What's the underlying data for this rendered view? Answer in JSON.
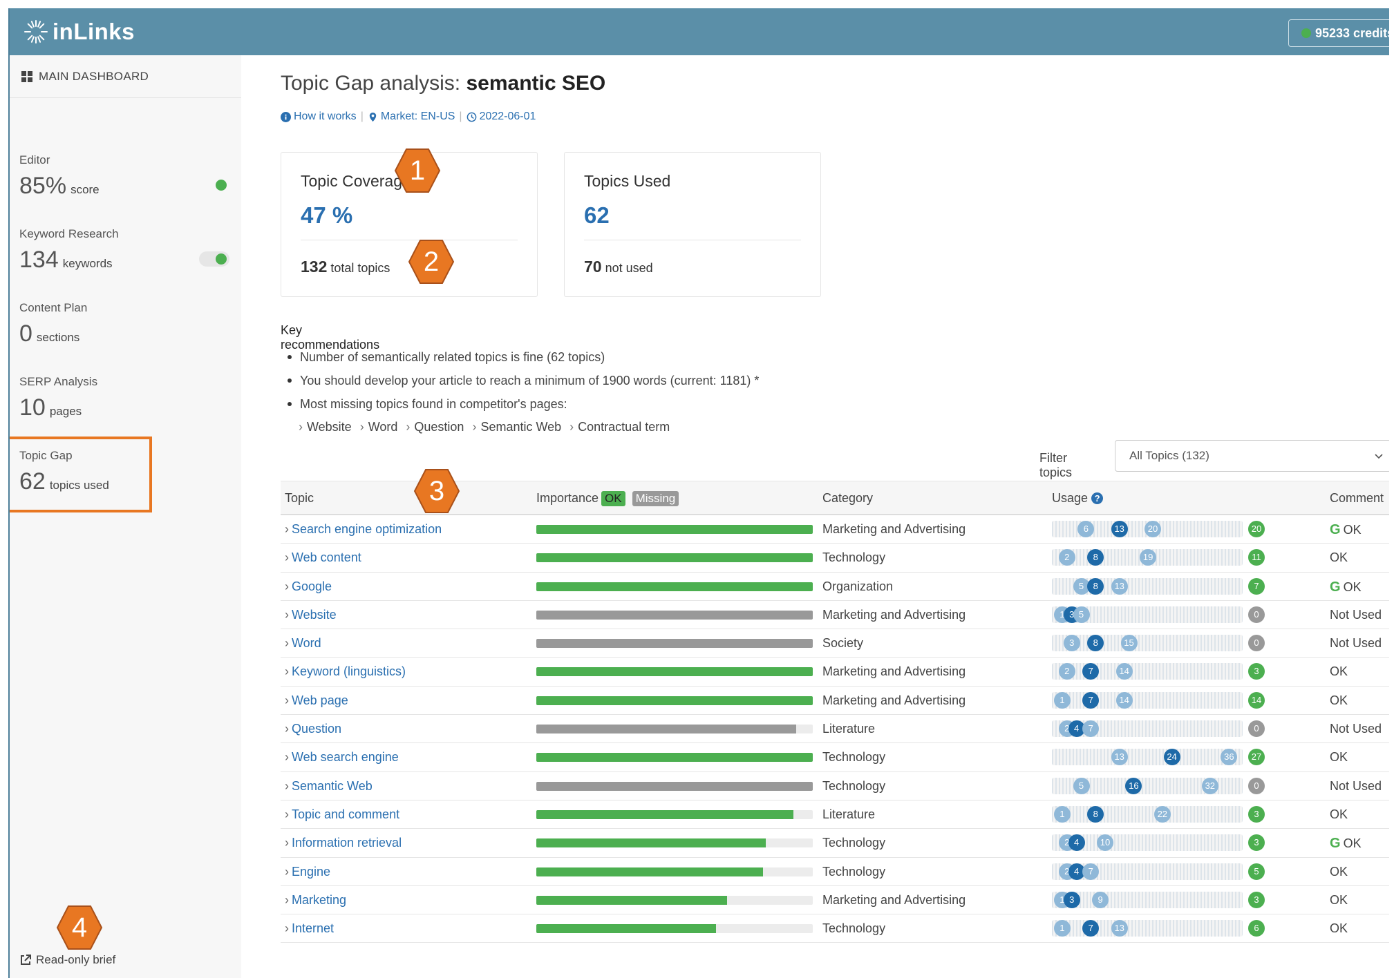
{
  "header": {
    "logo_text": "inLinks",
    "credits_text": "95233 credits"
  },
  "sidebar": {
    "main_dashboard": "MAIN DASHBOARD",
    "items": [
      {
        "label": "Editor",
        "value": "85%",
        "unit": "score",
        "indicator": "dot"
      },
      {
        "label": "Keyword Research",
        "value": "134",
        "unit": "keywords",
        "indicator": "toggle"
      },
      {
        "label": "Content Plan",
        "value": "0",
        "unit": "sections"
      },
      {
        "label": "SERP Analysis",
        "value": "10",
        "unit": "pages"
      },
      {
        "label": "Topic Gap",
        "value": "62",
        "unit": "topics used"
      }
    ],
    "readonly_label": "Read-only brief"
  },
  "page": {
    "title_prefix": "Topic Gap analysis:",
    "title_keyword": "semantic SEO",
    "meta": {
      "how_it_works": "How it works",
      "market": "Market: EN-US",
      "date": "2022-06-01"
    }
  },
  "cards": {
    "coverage": {
      "title": "Topic Coverage",
      "value": "47 %",
      "foot_number": "132",
      "foot_text": "total topics"
    },
    "used": {
      "title": "Topics Used",
      "value": "62",
      "foot_number": "70",
      "foot_text": "not used"
    }
  },
  "recommendations": {
    "title": "Key recommendations",
    "items": [
      "Number of semantically related topics is fine (62 topics)",
      "You should develop your article to reach a minimum of 1900 words (current: 1181) *",
      "Most missing topics found in competitor's pages:"
    ],
    "missing_topics": [
      "Website",
      "Word",
      "Question",
      "Semantic Web",
      "Contractual term"
    ]
  },
  "filter": {
    "label": "Filter topics",
    "selected": "All Topics (132)"
  },
  "table": {
    "headers": {
      "topic": "Topic",
      "importance": "Importance",
      "ok_tag": "OK",
      "missing_tag": "Missing",
      "category": "Category",
      "usage": "Usage",
      "comment": "Comment"
    },
    "rows": [
      {
        "topic": "Search engine optimization",
        "importance": 1.0,
        "status": "ok",
        "category": "Marketing and Advertising",
        "u1": "6",
        "u2": "13",
        "u3": "20",
        "count": "20",
        "comment": "OK",
        "google": true
      },
      {
        "topic": "Web content",
        "importance": 1.0,
        "status": "ok",
        "category": "Technology",
        "u1": "2",
        "u2": "8",
        "u3": "19",
        "count": "11",
        "comment": "OK",
        "google": false
      },
      {
        "topic": "Google",
        "importance": 1.0,
        "status": "ok",
        "category": "Organization",
        "u1": "5",
        "u2": "8",
        "u3": "13",
        "count": "7",
        "comment": "OK",
        "google": true
      },
      {
        "topic": "Website",
        "importance": 1.0,
        "status": "missing",
        "category": "Marketing and Advertising",
        "u1": "1",
        "u2": "3",
        "u3": "5",
        "count": "0",
        "comment": "Not Used",
        "google": false
      },
      {
        "topic": "Word",
        "importance": 1.0,
        "status": "missing",
        "category": "Society",
        "u1": "3",
        "u2": "8",
        "u3": "15",
        "count": "0",
        "comment": "Not Used",
        "google": false
      },
      {
        "topic": "Keyword (linguistics)",
        "importance": 1.0,
        "status": "ok",
        "category": "Marketing and Advertising",
        "u1": "2",
        "u2": "7",
        "u3": "14",
        "count": "3",
        "comment": "OK",
        "google": false
      },
      {
        "topic": "Web page",
        "importance": 1.0,
        "status": "ok",
        "category": "Marketing and Advertising",
        "u1": "1",
        "u2": "7",
        "u3": "14",
        "count": "14",
        "comment": "OK",
        "google": false
      },
      {
        "topic": "Question",
        "importance": 0.94,
        "status": "missing",
        "category": "Literature",
        "u1": "2",
        "u2": "4",
        "u3": "7",
        "count": "0",
        "comment": "Not Used",
        "google": false
      },
      {
        "topic": "Web search engine",
        "importance": 1.0,
        "status": "ok",
        "category": "Technology",
        "u1": "13",
        "u2": "24",
        "u3": "36",
        "count": "27",
        "comment": "OK",
        "google": false
      },
      {
        "topic": "Semantic Web",
        "importance": 1.0,
        "status": "missing",
        "category": "Technology",
        "u1": "5",
        "u2": "16",
        "u3": "32",
        "count": "0",
        "comment": "Not Used",
        "google": false
      },
      {
        "topic": "Topic and comment",
        "importance": 0.93,
        "status": "ok",
        "category": "Literature",
        "u1": "1",
        "u2": "8",
        "u3": "22",
        "count": "3",
        "comment": "OK",
        "google": false
      },
      {
        "topic": "Information retrieval",
        "importance": 0.83,
        "status": "ok",
        "category": "Technology",
        "u1": "2",
        "u2": "4",
        "u3": "10",
        "count": "3",
        "comment": "OK",
        "google": true
      },
      {
        "topic": "Engine",
        "importance": 0.82,
        "status": "ok",
        "category": "Technology",
        "u1": "2",
        "u2": "4",
        "u3": "7",
        "count": "5",
        "comment": "OK",
        "google": false
      },
      {
        "topic": "Marketing",
        "importance": 0.69,
        "status": "ok",
        "category": "Marketing and Advertising",
        "u1": "1",
        "u2": "3",
        "u3": "9",
        "count": "3",
        "comment": "OK",
        "google": false
      },
      {
        "topic": "Internet",
        "importance": 0.65,
        "status": "ok",
        "category": "Technology",
        "u1": "1",
        "u2": "7",
        "u3": "13",
        "count": "6",
        "comment": "OK",
        "google": false
      }
    ]
  },
  "callouts": [
    "1",
    "2",
    "3",
    "4"
  ],
  "colors": {
    "header_bg": "#5b8fa8",
    "link": "#2a6fb0",
    "ok_green": "#4caf50",
    "missing_grey": "#999999",
    "callout_orange": "#e87722"
  }
}
